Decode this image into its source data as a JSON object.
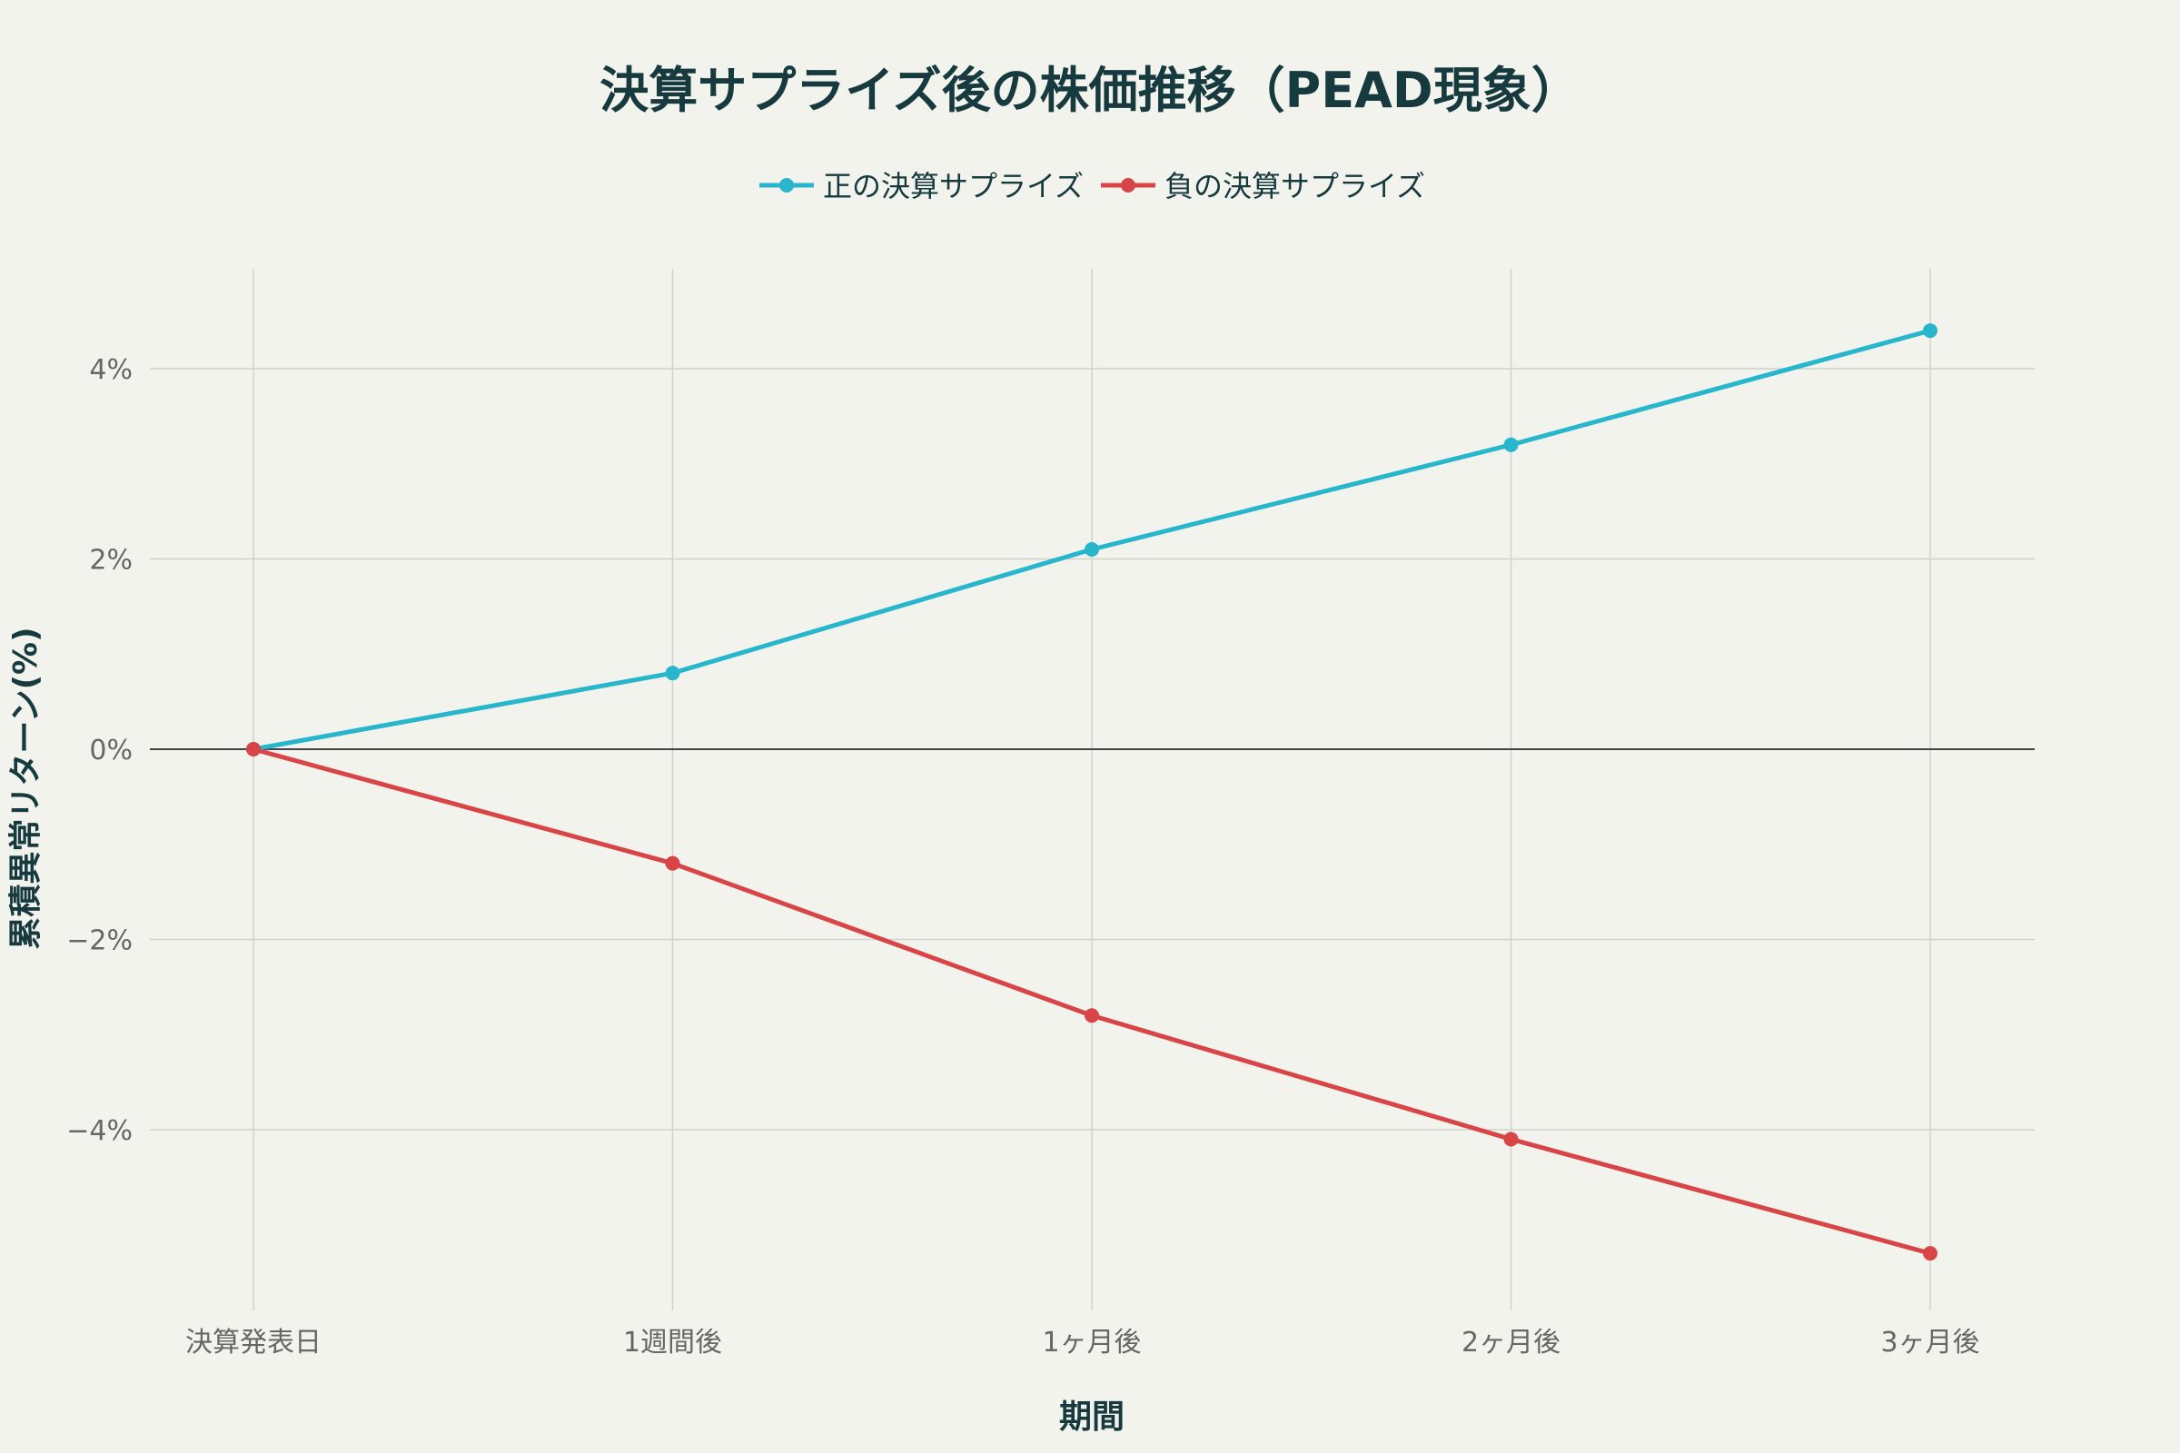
{
  "chart_data": {
    "type": "line",
    "title": "決算サプライズ後の株価推移（PEAD現象）",
    "xlabel": "期間",
    "ylabel": "累積異常リターン(%)",
    "categories": [
      "決算発表日",
      "1週間後",
      "1ヶ月後",
      "2ヶ月後",
      "3ヶ月後"
    ],
    "series": [
      {
        "name": "正の決算サプライズ",
        "color": "#27b6cc",
        "values": [
          0,
          0.8,
          2.1,
          3.2,
          4.4
        ]
      },
      {
        "name": "負の決算サプライズ",
        "color": "#d84547",
        "values": [
          0,
          -1.2,
          -2.8,
          -4.1,
          -5.3
        ]
      }
    ],
    "yticks": [
      4,
      2,
      0,
      -2,
      -4
    ],
    "ytick_labels": [
      "4%",
      "2%",
      "0%",
      "−2%",
      "−4%"
    ],
    "ylim": [
      -5.9,
      5.05
    ],
    "grid": true,
    "zero_line": true,
    "legend_position": "top-center"
  }
}
